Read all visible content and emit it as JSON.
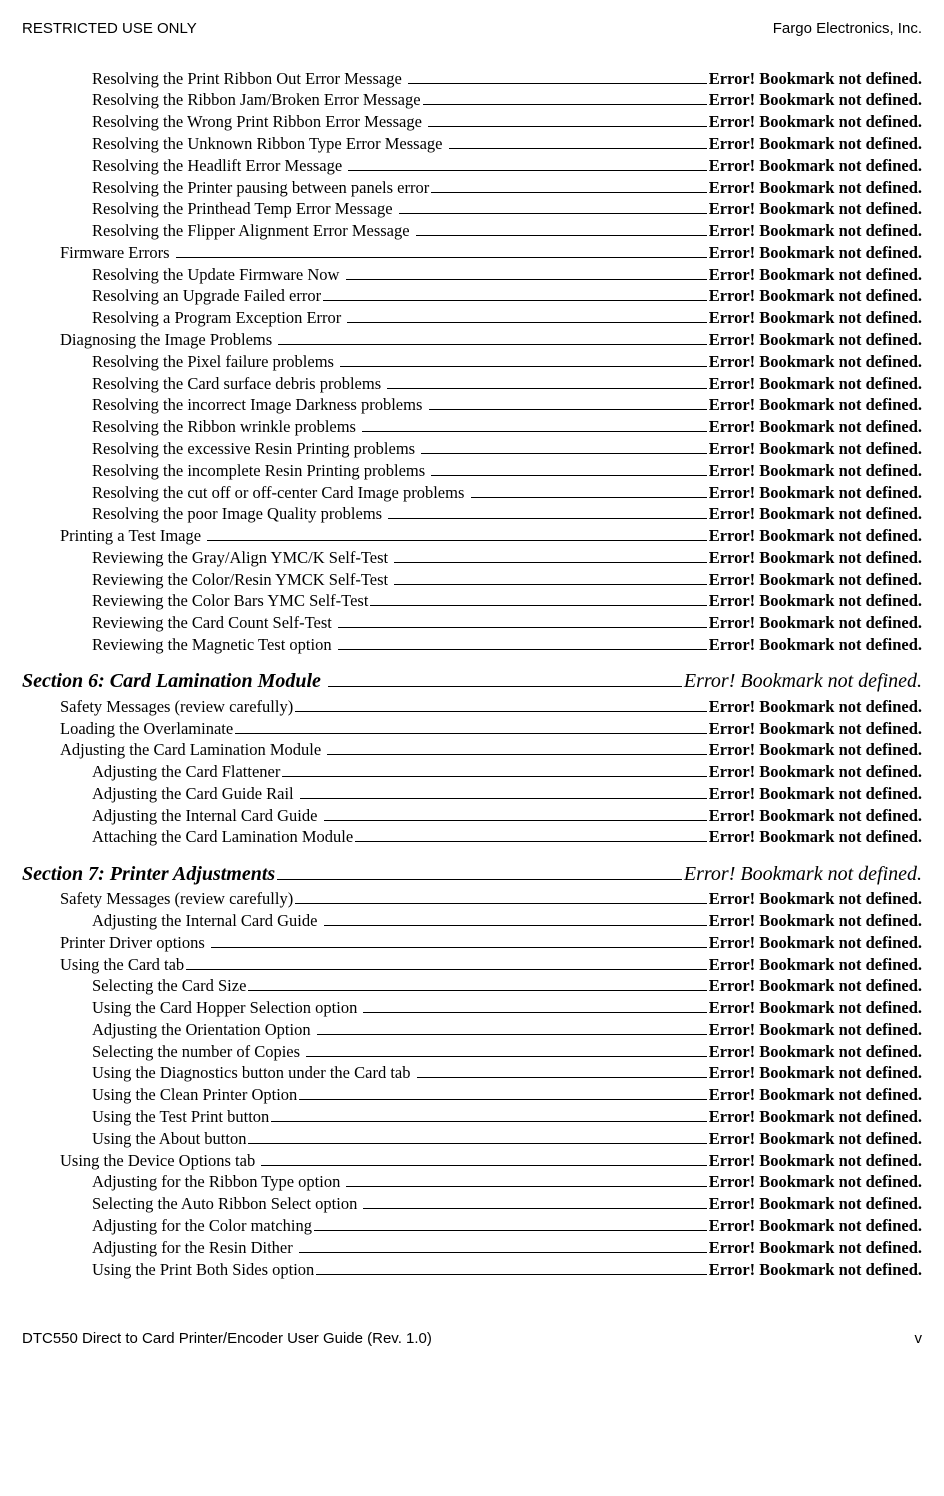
{
  "header": {
    "left": "RESTRICTED USE ONLY",
    "right": "Fargo Electronics, Inc."
  },
  "footer": {
    "left": "DTC550 Direct to Card Printer/Encoder User Guide (Rev. 1.0)",
    "right": "v"
  },
  "error_text": "Error! Bookmark not defined.",
  "error_text_italic": "Error! Bookmark not defined.",
  "toc": [
    {
      "level": 3,
      "text": "Resolving the Print Ribbon Out Error Message "
    },
    {
      "level": 3,
      "text": "Resolving the Ribbon Jam/Broken Error Message"
    },
    {
      "level": 3,
      "text": "Resolving the Wrong Print Ribbon Error Message "
    },
    {
      "level": 3,
      "text": "Resolving the Unknown Ribbon Type Error Message "
    },
    {
      "level": 3,
      "text": "Resolving the Headlift Error Message "
    },
    {
      "level": 3,
      "text": "Resolving the Printer pausing between panels error"
    },
    {
      "level": 3,
      "text": "Resolving the Printhead Temp Error Message "
    },
    {
      "level": 3,
      "text": "Resolving the Flipper Alignment Error Message "
    },
    {
      "level": 2,
      "text": "Firmware Errors "
    },
    {
      "level": 3,
      "text": "Resolving the Update Firmware Now "
    },
    {
      "level": 3,
      "text": "Resolving an Upgrade Failed error"
    },
    {
      "level": 3,
      "text": "Resolving a Program Exception Error "
    },
    {
      "level": 2,
      "text": "Diagnosing the Image Problems "
    },
    {
      "level": 3,
      "text": "Resolving the Pixel failure problems "
    },
    {
      "level": 3,
      "text": "Resolving the Card surface debris problems "
    },
    {
      "level": 3,
      "text": "Resolving the incorrect Image Darkness problems "
    },
    {
      "level": 3,
      "text": "Resolving the Ribbon wrinkle problems "
    },
    {
      "level": 3,
      "text": "Resolving the excessive Resin Printing problems "
    },
    {
      "level": 3,
      "text": "Resolving the incomplete Resin Printing problems "
    },
    {
      "level": 3,
      "text": "Resolving the cut off or off-center Card Image problems "
    },
    {
      "level": 3,
      "text": "Resolving the poor Image Quality problems "
    },
    {
      "level": 2,
      "text": "Printing a Test Image "
    },
    {
      "level": 3,
      "text": "Reviewing the Gray/Align YMC/K Self-Test "
    },
    {
      "level": 3,
      "text": "Reviewing the Color/Resin YMCK Self-Test "
    },
    {
      "level": 3,
      "text": "Reviewing the Color Bars YMC Self-Test"
    },
    {
      "level": 3,
      "text": "Reviewing the Card Count Self-Test "
    },
    {
      "level": 3,
      "text": "Reviewing the Magnetic Test option "
    },
    {
      "level": 1,
      "text": "Section 6: Card Lamination Module "
    },
    {
      "level": 2,
      "text": "Safety Messages (review carefully)"
    },
    {
      "level": 2,
      "text": "Loading the Overlaminate"
    },
    {
      "level": 2,
      "text": "Adjusting the Card Lamination Module "
    },
    {
      "level": 3,
      "text": "Adjusting the Card Flattener"
    },
    {
      "level": 3,
      "text": "Adjusting the Card Guide Rail "
    },
    {
      "level": 3,
      "text": "Adjusting the Internal Card Guide "
    },
    {
      "level": 3,
      "text": "Attaching the Card Lamination Module"
    },
    {
      "level": 1,
      "text": "Section 7: Printer Adjustments"
    },
    {
      "level": 2,
      "text": "Safety Messages (review carefully)"
    },
    {
      "level": 3,
      "text": "Adjusting the Internal Card Guide "
    },
    {
      "level": 2,
      "text": "Printer Driver options "
    },
    {
      "level": 2,
      "text": "Using the Card tab"
    },
    {
      "level": 3,
      "text": "Selecting the Card Size"
    },
    {
      "level": 3,
      "text": "Using the Card Hopper Selection option "
    },
    {
      "level": 3,
      "text": "Adjusting the Orientation Option "
    },
    {
      "level": 3,
      "text": "Selecting the number of Copies "
    },
    {
      "level": 3,
      "text": "Using the Diagnostics button under the Card tab "
    },
    {
      "level": 3,
      "text": "Using the Clean Printer Option"
    },
    {
      "level": 3,
      "text": "Using the Test Print button"
    },
    {
      "level": 3,
      "text": "Using the About button"
    },
    {
      "level": 2,
      "text": "Using the Device Options tab "
    },
    {
      "level": 3,
      "text": "Adjusting for the Ribbon Type option "
    },
    {
      "level": 3,
      "text": "Selecting the Auto Ribbon Select option "
    },
    {
      "level": 3,
      "text": "Adjusting for the Color matching"
    },
    {
      "level": 3,
      "text": "Adjusting for the Resin Dither "
    },
    {
      "level": 3,
      "text": "Using the Print Both Sides option"
    }
  ]
}
